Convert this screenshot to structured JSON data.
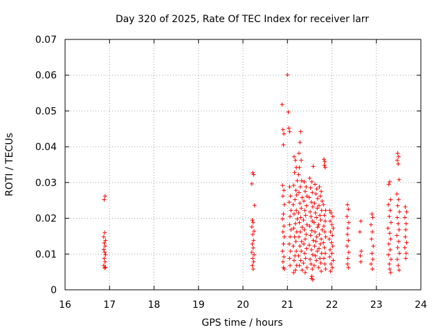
{
  "chart_data": {
    "type": "scatter",
    "title": "Day 320 of 2025, Rate Of TEC Index for receiver larr",
    "xlabel": "GPS time / hours",
    "ylabel": "ROTI / TECUs",
    "xlim": [
      16,
      24
    ],
    "ylim": [
      0,
      0.07
    ],
    "xticks": [
      "16",
      "17",
      "18",
      "19",
      "20",
      "21",
      "22",
      "23",
      "24"
    ],
    "yticks": [
      "0",
      "0.01",
      "0.02",
      "0.03",
      "0.04",
      "0.05",
      "0.06",
      "0.07"
    ],
    "grid": true,
    "marker": "+",
    "color": "#ff0000",
    "series": [
      {
        "values": [
          [
            16.88,
            0.0252
          ],
          [
            16.9,
            0.0262
          ],
          [
            16.89,
            0.016
          ],
          [
            16.87,
            0.0148
          ],
          [
            16.91,
            0.0138
          ],
          [
            16.88,
            0.0131
          ],
          [
            16.9,
            0.0122
          ],
          [
            16.87,
            0.0113
          ],
          [
            16.89,
            0.0105
          ],
          [
            16.91,
            0.0098
          ],
          [
            16.88,
            0.0088
          ],
          [
            16.9,
            0.0078
          ],
          [
            16.87,
            0.0068
          ],
          [
            16.91,
            0.0063
          ],
          [
            16.89,
            0.0061
          ],
          [
            20.22,
            0.0327
          ],
          [
            20.24,
            0.0322
          ],
          [
            20.2,
            0.0296
          ],
          [
            20.26,
            0.0236
          ],
          [
            20.21,
            0.0195
          ],
          [
            20.23,
            0.0188
          ],
          [
            20.2,
            0.0176
          ],
          [
            20.25,
            0.0164
          ],
          [
            20.22,
            0.0155
          ],
          [
            20.24,
            0.0138
          ],
          [
            20.21,
            0.0128
          ],
          [
            20.23,
            0.0117
          ],
          [
            20.2,
            0.0105
          ],
          [
            20.25,
            0.0098
          ],
          [
            20.22,
            0.0088
          ],
          [
            20.24,
            0.0078
          ],
          [
            20.21,
            0.0068
          ],
          [
            20.23,
            0.0058
          ],
          [
            20.88,
            0.0518
          ],
          [
            20.9,
            0.0448
          ],
          [
            20.92,
            0.0436
          ],
          [
            20.91,
            0.0405
          ],
          [
            21.0,
            0.0601
          ],
          [
            21.02,
            0.0497
          ],
          [
            21.03,
            0.0452
          ],
          [
            21.05,
            0.0442
          ],
          [
            20.89,
            0.0292
          ],
          [
            20.92,
            0.0278
          ],
          [
            20.9,
            0.0262
          ],
          [
            20.93,
            0.0238
          ],
          [
            20.91,
            0.0212
          ],
          [
            20.89,
            0.0198
          ],
          [
            20.92,
            0.0178
          ],
          [
            20.9,
            0.0162
          ],
          [
            20.93,
            0.0148
          ],
          [
            20.91,
            0.0128
          ],
          [
            20.89,
            0.0108
          ],
          [
            20.92,
            0.0092
          ],
          [
            20.9,
            0.0078
          ],
          [
            20.91,
            0.0062
          ],
          [
            20.93,
            0.0058
          ],
          [
            21.05,
            0.0288
          ],
          [
            21.07,
            0.0262
          ],
          [
            21.04,
            0.0245
          ],
          [
            21.08,
            0.0222
          ],
          [
            21.06,
            0.0205
          ],
          [
            21.05,
            0.0182
          ],
          [
            21.08,
            0.0168
          ],
          [
            21.06,
            0.0148
          ],
          [
            21.04,
            0.0128
          ],
          [
            21.07,
            0.0108
          ],
          [
            21.05,
            0.0088
          ],
          [
            21.06,
            0.0068
          ],
          [
            21.15,
            0.0372
          ],
          [
            21.18,
            0.0362
          ],
          [
            21.2,
            0.0342
          ],
          [
            21.16,
            0.0328
          ],
          [
            21.22,
            0.0305
          ],
          [
            21.14,
            0.0292
          ],
          [
            21.19,
            0.0278
          ],
          [
            21.21,
            0.0265
          ],
          [
            21.17,
            0.0252
          ],
          [
            21.13,
            0.0238
          ],
          [
            21.2,
            0.0222
          ],
          [
            21.15,
            0.0212
          ],
          [
            21.22,
            0.0198
          ],
          [
            21.18,
            0.0185
          ],
          [
            21.14,
            0.0172
          ],
          [
            21.21,
            0.0162
          ],
          [
            21.16,
            0.0148
          ],
          [
            21.19,
            0.0135
          ],
          [
            21.13,
            0.0122
          ],
          [
            21.2,
            0.0108
          ],
          [
            21.17,
            0.0095
          ],
          [
            21.15,
            0.0082
          ],
          [
            21.21,
            0.0068
          ],
          [
            21.18,
            0.0055
          ],
          [
            21.14,
            0.0048
          ],
          [
            21.3,
            0.0442
          ],
          [
            21.28,
            0.0412
          ],
          [
            21.26,
            0.0382
          ],
          [
            21.31,
            0.0362
          ],
          [
            21.27,
            0.0342
          ],
          [
            21.25,
            0.0322
          ],
          [
            21.32,
            0.0305
          ],
          [
            21.29,
            0.0288
          ],
          [
            21.26,
            0.0272
          ],
          [
            21.33,
            0.0258
          ],
          [
            21.28,
            0.0242
          ],
          [
            21.31,
            0.0228
          ],
          [
            21.25,
            0.0215
          ],
          [
            21.3,
            0.0202
          ],
          [
            21.27,
            0.0188
          ],
          [
            21.33,
            0.0175
          ],
          [
            21.29,
            0.0162
          ],
          [
            21.26,
            0.0148
          ],
          [
            21.32,
            0.0135
          ],
          [
            21.28,
            0.0122
          ],
          [
            21.31,
            0.0108
          ],
          [
            21.25,
            0.0095
          ],
          [
            21.3,
            0.0082
          ],
          [
            21.27,
            0.0068
          ],
          [
            21.33,
            0.0055
          ],
          [
            21.38,
            0.0302
          ],
          [
            21.42,
            0.0288
          ],
          [
            21.4,
            0.0275
          ],
          [
            21.44,
            0.0262
          ],
          [
            21.37,
            0.0248
          ],
          [
            21.43,
            0.0235
          ],
          [
            21.39,
            0.0222
          ],
          [
            21.41,
            0.0208
          ],
          [
            21.36,
            0.0195
          ],
          [
            21.44,
            0.0182
          ],
          [
            21.38,
            0.0168
          ],
          [
            21.42,
            0.0155
          ],
          [
            21.4,
            0.0142
          ],
          [
            21.37,
            0.0128
          ],
          [
            21.43,
            0.0115
          ],
          [
            21.39,
            0.0102
          ],
          [
            21.41,
            0.0088
          ],
          [
            21.36,
            0.0075
          ],
          [
            21.44,
            0.0062
          ],
          [
            21.4,
            0.0048
          ],
          [
            21.5,
            0.0312
          ],
          [
            21.55,
            0.0302
          ],
          [
            21.58,
            0.0345
          ],
          [
            21.52,
            0.0285
          ],
          [
            21.56,
            0.0272
          ],
          [
            21.49,
            0.0258
          ],
          [
            21.54,
            0.0245
          ],
          [
            21.57,
            0.0232
          ],
          [
            21.51,
            0.0218
          ],
          [
            21.53,
            0.0205
          ],
          [
            21.56,
            0.0192
          ],
          [
            21.5,
            0.0178
          ],
          [
            21.55,
            0.0165
          ],
          [
            21.52,
            0.0152
          ],
          [
            21.58,
            0.0138
          ],
          [
            21.49,
            0.0125
          ],
          [
            21.54,
            0.0112
          ],
          [
            21.57,
            0.0098
          ],
          [
            21.51,
            0.0085
          ],
          [
            21.53,
            0.0072
          ],
          [
            21.56,
            0.0058
          ],
          [
            21.55,
            0.0038
          ],
          [
            21.57,
            0.0028
          ],
          [
            21.54,
            0.0032
          ],
          [
            21.62,
            0.0295
          ],
          [
            21.66,
            0.0282
          ],
          [
            21.64,
            0.0268
          ],
          [
            21.68,
            0.0255
          ],
          [
            21.61,
            0.0242
          ],
          [
            21.67,
            0.0228
          ],
          [
            21.63,
            0.0215
          ],
          [
            21.65,
            0.0202
          ],
          [
            21.6,
            0.0188
          ],
          [
            21.68,
            0.0175
          ],
          [
            21.62,
            0.0162
          ],
          [
            21.66,
            0.0148
          ],
          [
            21.64,
            0.0135
          ],
          [
            21.61,
            0.0122
          ],
          [
            21.67,
            0.0108
          ],
          [
            21.63,
            0.0095
          ],
          [
            21.65,
            0.0082
          ],
          [
            21.6,
            0.0068
          ],
          [
            21.72,
            0.0288
          ],
          [
            21.76,
            0.0275
          ],
          [
            21.74,
            0.0262
          ],
          [
            21.78,
            0.0248
          ],
          [
            21.71,
            0.0235
          ],
          [
            21.77,
            0.0222
          ],
          [
            21.73,
            0.0208
          ],
          [
            21.75,
            0.0195
          ],
          [
            21.7,
            0.0182
          ],
          [
            21.78,
            0.0168
          ],
          [
            21.72,
            0.0155
          ],
          [
            21.76,
            0.0142
          ],
          [
            21.74,
            0.0128
          ],
          [
            21.71,
            0.0115
          ],
          [
            21.77,
            0.0102
          ],
          [
            21.73,
            0.0088
          ],
          [
            21.75,
            0.0075
          ],
          [
            21.7,
            0.0062
          ],
          [
            21.76,
            0.0052
          ],
          [
            21.82,
            0.0365
          ],
          [
            21.84,
            0.0358
          ],
          [
            21.83,
            0.0348
          ],
          [
            21.85,
            0.0342
          ],
          [
            21.81,
            0.0238
          ],
          [
            21.86,
            0.0222
          ],
          [
            21.83,
            0.0208
          ],
          [
            21.85,
            0.0192
          ],
          [
            21.82,
            0.0178
          ],
          [
            21.84,
            0.0162
          ],
          [
            21.86,
            0.0148
          ],
          [
            21.81,
            0.0132
          ],
          [
            21.83,
            0.0118
          ],
          [
            21.85,
            0.0102
          ],
          [
            21.82,
            0.0088
          ],
          [
            21.84,
            0.0072
          ],
          [
            21.86,
            0.0058
          ],
          [
            21.95,
            0.0222
          ],
          [
            21.98,
            0.0215
          ],
          [
            22.02,
            0.0205
          ],
          [
            21.96,
            0.0192
          ],
          [
            22.0,
            0.0182
          ],
          [
            22.03,
            0.0172
          ],
          [
            21.97,
            0.0162
          ],
          [
            22.01,
            0.0152
          ],
          [
            21.94,
            0.0142
          ],
          [
            21.99,
            0.0132
          ],
          [
            22.02,
            0.0122
          ],
          [
            21.96,
            0.0112
          ],
          [
            22.0,
            0.0102
          ],
          [
            21.95,
            0.0092
          ],
          [
            22.03,
            0.0082
          ],
          [
            21.98,
            0.0072
          ],
          [
            22.01,
            0.0062
          ],
          [
            21.97,
            0.0052
          ],
          [
            22.35,
            0.0238
          ],
          [
            22.37,
            0.0225
          ],
          [
            22.34,
            0.0205
          ],
          [
            22.38,
            0.0188
          ],
          [
            22.36,
            0.0172
          ],
          [
            22.35,
            0.0155
          ],
          [
            22.37,
            0.0138
          ],
          [
            22.34,
            0.0122
          ],
          [
            22.38,
            0.0105
          ],
          [
            22.36,
            0.0088
          ],
          [
            22.35,
            0.0072
          ],
          [
            22.37,
            0.0062
          ],
          [
            22.65,
            0.0192
          ],
          [
            22.63,
            0.0162
          ],
          [
            22.66,
            0.0108
          ],
          [
            22.64,
            0.0095
          ],
          [
            22.65,
            0.0078
          ],
          [
            22.9,
            0.0212
          ],
          [
            22.92,
            0.0202
          ],
          [
            22.88,
            0.0182
          ],
          [
            22.91,
            0.0162
          ],
          [
            22.89,
            0.0142
          ],
          [
            22.93,
            0.0122
          ],
          [
            22.9,
            0.0102
          ],
          [
            22.92,
            0.0085
          ],
          [
            22.88,
            0.0072
          ],
          [
            22.91,
            0.0058
          ],
          [
            23.3,
            0.0302
          ],
          [
            23.28,
            0.0295
          ],
          [
            23.32,
            0.0252
          ],
          [
            23.27,
            0.0238
          ],
          [
            23.31,
            0.0222
          ],
          [
            23.29,
            0.0205
          ],
          [
            23.33,
            0.0188
          ],
          [
            23.26,
            0.0172
          ],
          [
            23.3,
            0.0158
          ],
          [
            23.32,
            0.0142
          ],
          [
            23.28,
            0.0128
          ],
          [
            23.31,
            0.0112
          ],
          [
            23.27,
            0.0098
          ],
          [
            23.33,
            0.0085
          ],
          [
            23.29,
            0.0072
          ],
          [
            23.3,
            0.0058
          ],
          [
            23.32,
            0.0048
          ],
          [
            23.48,
            0.0382
          ],
          [
            23.5,
            0.0372
          ],
          [
            23.47,
            0.0362
          ],
          [
            23.49,
            0.0352
          ],
          [
            23.51,
            0.0308
          ],
          [
            23.46,
            0.0268
          ],
          [
            23.5,
            0.0252
          ],
          [
            23.48,
            0.0235
          ],
          [
            23.52,
            0.0218
          ],
          [
            23.47,
            0.0202
          ],
          [
            23.49,
            0.0185
          ],
          [
            23.51,
            0.0168
          ],
          [
            23.46,
            0.0152
          ],
          [
            23.5,
            0.0135
          ],
          [
            23.48,
            0.0118
          ],
          [
            23.52,
            0.0102
          ],
          [
            23.47,
            0.0085
          ],
          [
            23.49,
            0.0068
          ],
          [
            23.51,
            0.0055
          ],
          [
            23.65,
            0.0232
          ],
          [
            23.68,
            0.0218
          ],
          [
            23.64,
            0.0202
          ],
          [
            23.67,
            0.0185
          ],
          [
            23.66,
            0.0168
          ],
          [
            23.65,
            0.0148
          ],
          [
            23.68,
            0.0132
          ],
          [
            23.64,
            0.0118
          ],
          [
            23.67,
            0.0102
          ],
          [
            23.66,
            0.0088
          ]
        ]
      }
    ]
  }
}
